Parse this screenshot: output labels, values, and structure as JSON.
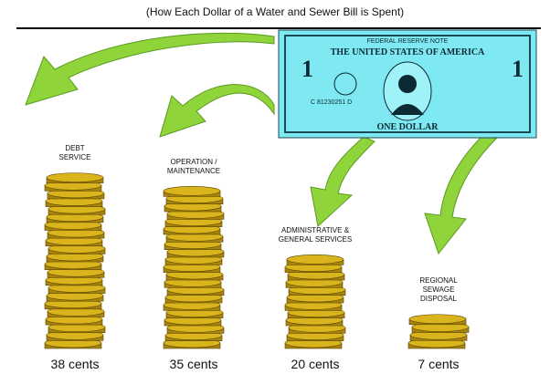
{
  "chart_data": {
    "type": "coin-stacks",
    "title": "(How Each Dollar of a Water and Sewer Bill is Spent)",
    "categories": [
      "DEBT\nSERVICE",
      "OPERATION /\nMAINTENANCE",
      "ADMINISTRATIVE &\nGENERAL SERVICES",
      "REGIONAL\nSEWAGE\nDISPOSAL"
    ],
    "values": [
      38,
      35,
      20,
      7
    ],
    "value_labels": [
      "38 cents",
      "35 cents",
      "20 cents",
      "7 cents"
    ],
    "color": "#d9b41c"
  },
  "dollar_bill": {
    "header": "FEDERAL RESERVE NOTE",
    "title": "THE UNITED STATES OF AMERICA",
    "denomination": "ONE DOLLAR",
    "serial": "C 81230251 D"
  }
}
